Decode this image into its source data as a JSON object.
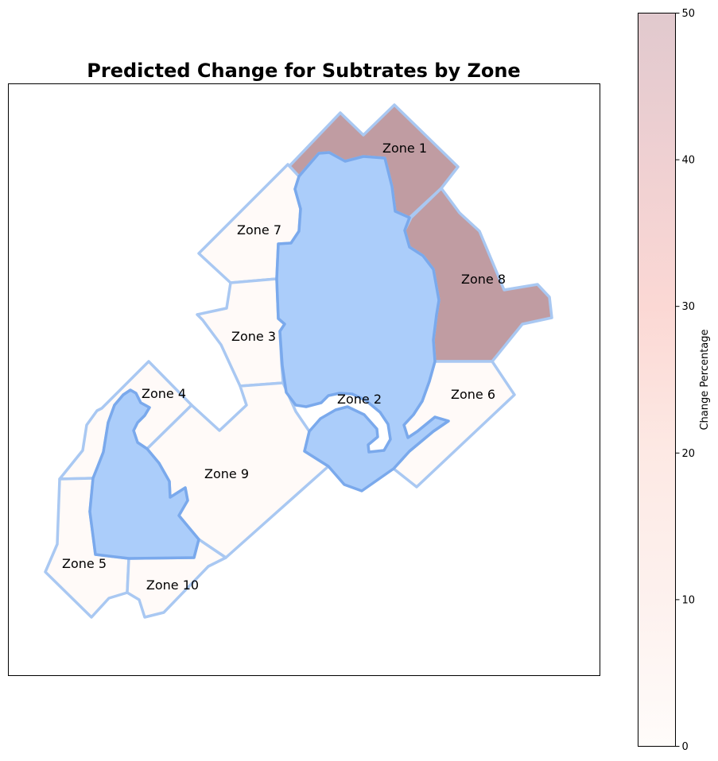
{
  "title": "Predicted Change for Subtrates by Zone",
  "colorbar": {
    "label": "Change Percentage",
    "min": 0,
    "max": 50,
    "ticks": [
      "0",
      "10",
      "20",
      "30",
      "40",
      "50"
    ]
  },
  "colors": {
    "zone_outline": "#a9c8f2",
    "water_fill": "#abcdfa",
    "water_outline": "#7aa9ec",
    "high_change_fill": "#c09ca2",
    "low_change_fill": "#fffaf8"
  },
  "zones": [
    {
      "label": "Zone 1",
      "change": 50
    },
    {
      "label": "Zone 2",
      "change": 0
    },
    {
      "label": "Zone 3",
      "change": 0
    },
    {
      "label": "Zone 4",
      "change": 0
    },
    {
      "label": "Zone 5",
      "change": 0
    },
    {
      "label": "Zone 6",
      "change": 0
    },
    {
      "label": "Zone 7",
      "change": 0
    },
    {
      "label": "Zone 8",
      "change": 50
    },
    {
      "label": "Zone 9",
      "change": 0
    },
    {
      "label": "Zone 10",
      "change": 0
    }
  ]
}
